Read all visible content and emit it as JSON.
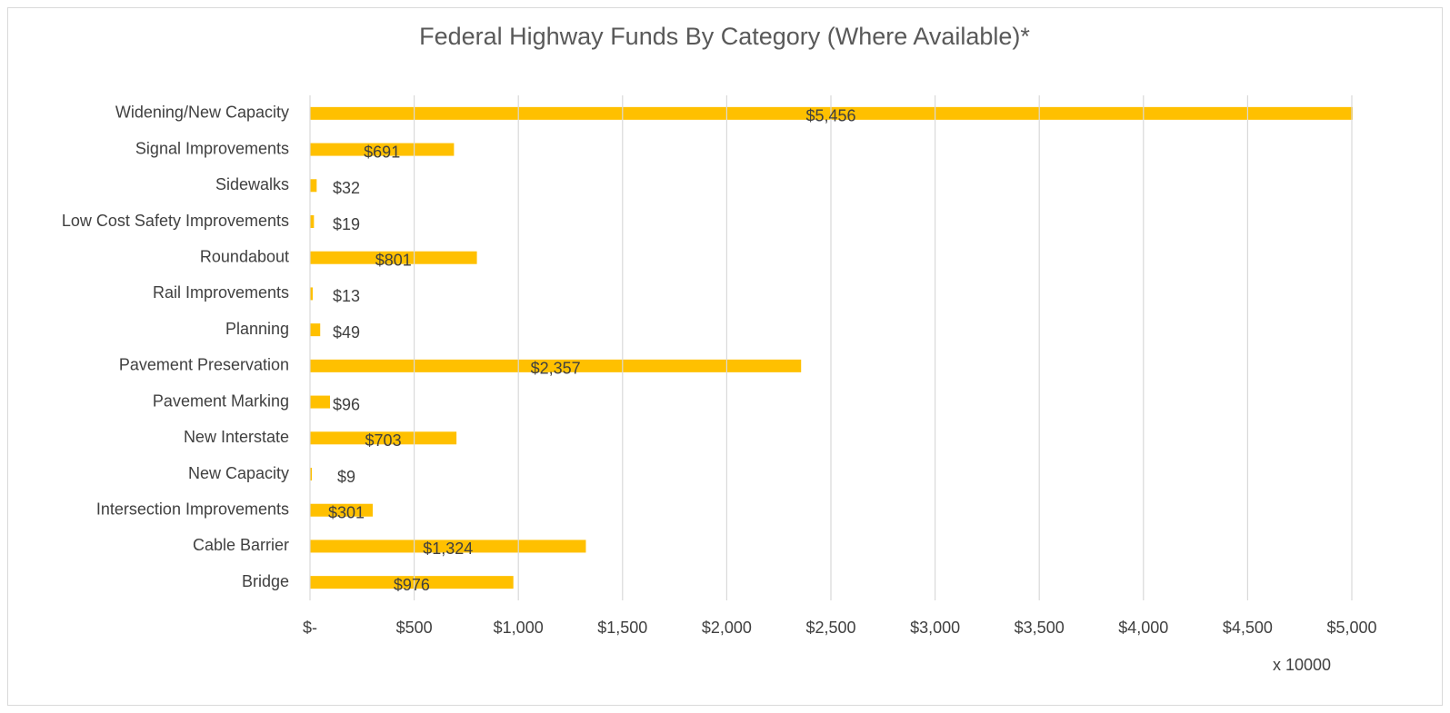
{
  "chart_data": {
    "type": "barh",
    "title": "Federal Highway Funds By Category (Where Available)*",
    "x_axis_label": "x 10000",
    "categories": [
      "Widening/New Capacity",
      "Signal Improvements",
      "Sidewalks",
      "Low Cost Safety Improvements",
      "Roundabout",
      "Rail Improvements",
      "Planning",
      "Pavement Preservation",
      "Pavement Marking",
      "New Interstate",
      "New Capacity",
      "Intersection Improvements",
      "Cable Barrier",
      "Bridge"
    ],
    "values": [
      5456,
      691,
      32,
      19,
      801,
      13,
      49,
      2357,
      96,
      703,
      9,
      301,
      1324,
      976
    ],
    "value_labels": [
      "$5,456",
      "$691",
      "$32",
      "$19",
      "$801",
      "$13",
      "$49",
      "$2,357",
      "$96",
      "$703",
      "$9",
      "$301",
      "$1,324",
      "$976"
    ],
    "color": "#ffc000",
    "xlim": [
      0,
      5000
    ],
    "xticks": [
      {
        "value": 0,
        "label": "$-"
      },
      {
        "value": 500,
        "label": "$500"
      },
      {
        "value": 1000,
        "label": "$1,000"
      },
      {
        "value": 1500,
        "label": "$1,500"
      },
      {
        "value": 2000,
        "label": "$2,000"
      },
      {
        "value": 2500,
        "label": "$2,500"
      },
      {
        "value": 3000,
        "label": "$3,000"
      },
      {
        "value": 3500,
        "label": "$3,500"
      },
      {
        "value": 4000,
        "label": "$4,000"
      },
      {
        "value": 4500,
        "label": "$4,500"
      },
      {
        "value": 5000,
        "label": "$5,000"
      }
    ],
    "grid": true
  }
}
